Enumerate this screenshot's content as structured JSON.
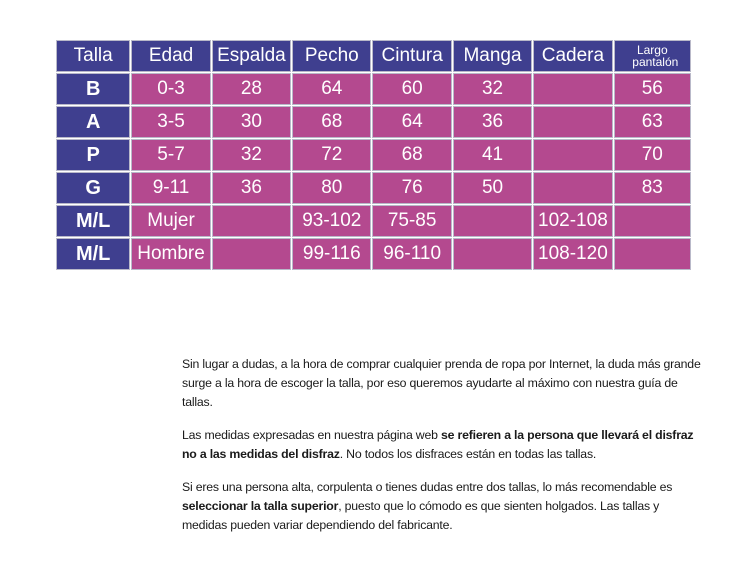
{
  "table": {
    "headers": [
      "Talla",
      "Edad",
      "Espalda",
      "Pecho",
      "Cintura",
      "Manga",
      "Cadera"
    ],
    "header_last_line1": "Largo",
    "header_last_line2": "pantalón",
    "rows": [
      [
        "B",
        "0-3",
        "28",
        "64",
        "60",
        "32",
        "",
        "56"
      ],
      [
        "A",
        "3-5",
        "30",
        "68",
        "64",
        "36",
        "",
        "63"
      ],
      [
        "P",
        "5-7",
        "32",
        "72",
        "68",
        "41",
        "",
        "70"
      ],
      [
        "G",
        "9-11",
        "36",
        "80",
        "76",
        "50",
        "",
        "83"
      ],
      [
        "M/L",
        "Mujer",
        "",
        "93-102",
        "75-85",
        "",
        "102-108",
        ""
      ],
      [
        "M/L",
        "Hombre",
        "",
        "99-116",
        "96-110",
        "",
        "108-120",
        ""
      ]
    ]
  },
  "text": {
    "p1": "Sin lugar a dudas, a la hora de comprar cualquier prenda de ropa por Internet, la duda más grande surge a la hora de escoger la talla, por eso queremos ayudarte al máximo con nuestra guía de tallas.",
    "p2_a": "Las medidas expresadas en nuestra página web ",
    "p2_b": "se refieren a la persona que llevará el disfraz no a las medidas del disfraz",
    "p2_c": ". No todos los disfraces están en todas las tallas.",
    "p3_a": "Si eres una persona alta, corpulenta o tienes dudas entre dos tallas, lo más recomendable es ",
    "p3_b": "seleccionar la talla superior",
    "p3_c": ", puesto que lo cómodo es que sienten holgados. Las tallas y medidas pueden variar dependiendo del fabricante."
  },
  "colors": {
    "header_bg": "#3f3f8f",
    "cell_bg": "#b4498f"
  }
}
